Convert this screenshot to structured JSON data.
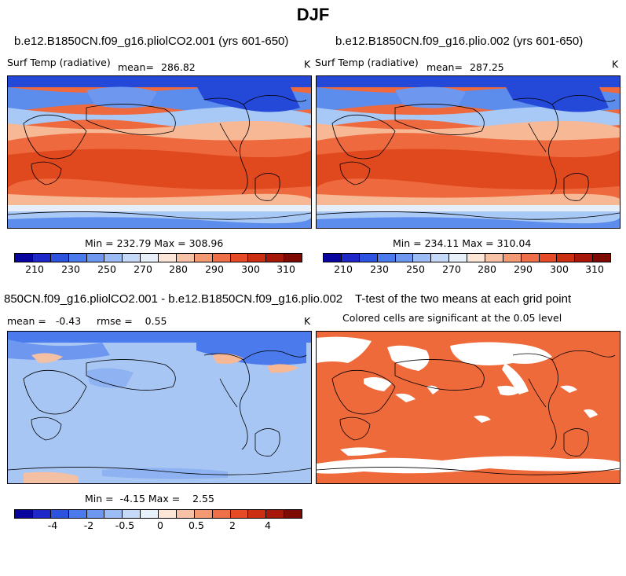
{
  "figure_title": "DJF",
  "panels": [
    {
      "case_title": "b.e12.B1850CN.f09_g16.pliolCO2.001 (yrs 601-650)",
      "variable": "Surf Temp (radiative)",
      "mean_label": "mean=",
      "mean_value": "286.82",
      "units": "K",
      "minmax": "Min = 232.79 Max = 308.96"
    },
    {
      "case_title": "b.e12.B1850CN.f09_g16.plio.002 (yrs 601-650)",
      "variable": "Surf Temp (radiative)",
      "mean_label": "mean=",
      "mean_value": "287.25",
      "units": "K",
      "minmax": "Min = 234.11 Max = 310.04"
    },
    {
      "case_title": "850CN.f09_g16.pliolCO2.001 - b.e12.B1850CN.f09_g16.plio.002",
      "stats": "mean =   -0.43     rmse =    0.55",
      "units": "K",
      "minmax": "Min =  -4.15 Max =    2.55"
    },
    {
      "case_title": "T-test of the two means at each grid point",
      "subtitle": "Colored cells are significant at the 0.05 level"
    }
  ],
  "colorbars": {
    "abs_labels": [
      "210",
      "230",
      "250",
      "270",
      "280",
      "290",
      "300",
      "310"
    ],
    "diff_labels": [
      "-4",
      "-2",
      "-0.5",
      "0",
      "0.5",
      "2",
      "4"
    ],
    "colors": [
      "#08049e",
      "#1e28c8",
      "#2d52e0",
      "#4a7aeb",
      "#6e98f0",
      "#9bbcf5",
      "#c4daf8",
      "#e8f0fa",
      "#fbe6d8",
      "#f7c2a6",
      "#f39a74",
      "#ef7048",
      "#e64a26",
      "#cc2e12",
      "#a8180a",
      "#7e0a04"
    ]
  },
  "map_colors": {
    "deep_cold": "#2448d8",
    "cold": "#5c8cec",
    "cool": "#a8c8f6",
    "mild": "#e6eefa",
    "warm": "#f7b896",
    "hot": "#ee6a3e",
    "hottest": "#e0481e",
    "diff_bg": "#a8c6f4",
    "sig": "#ef6a3a"
  }
}
